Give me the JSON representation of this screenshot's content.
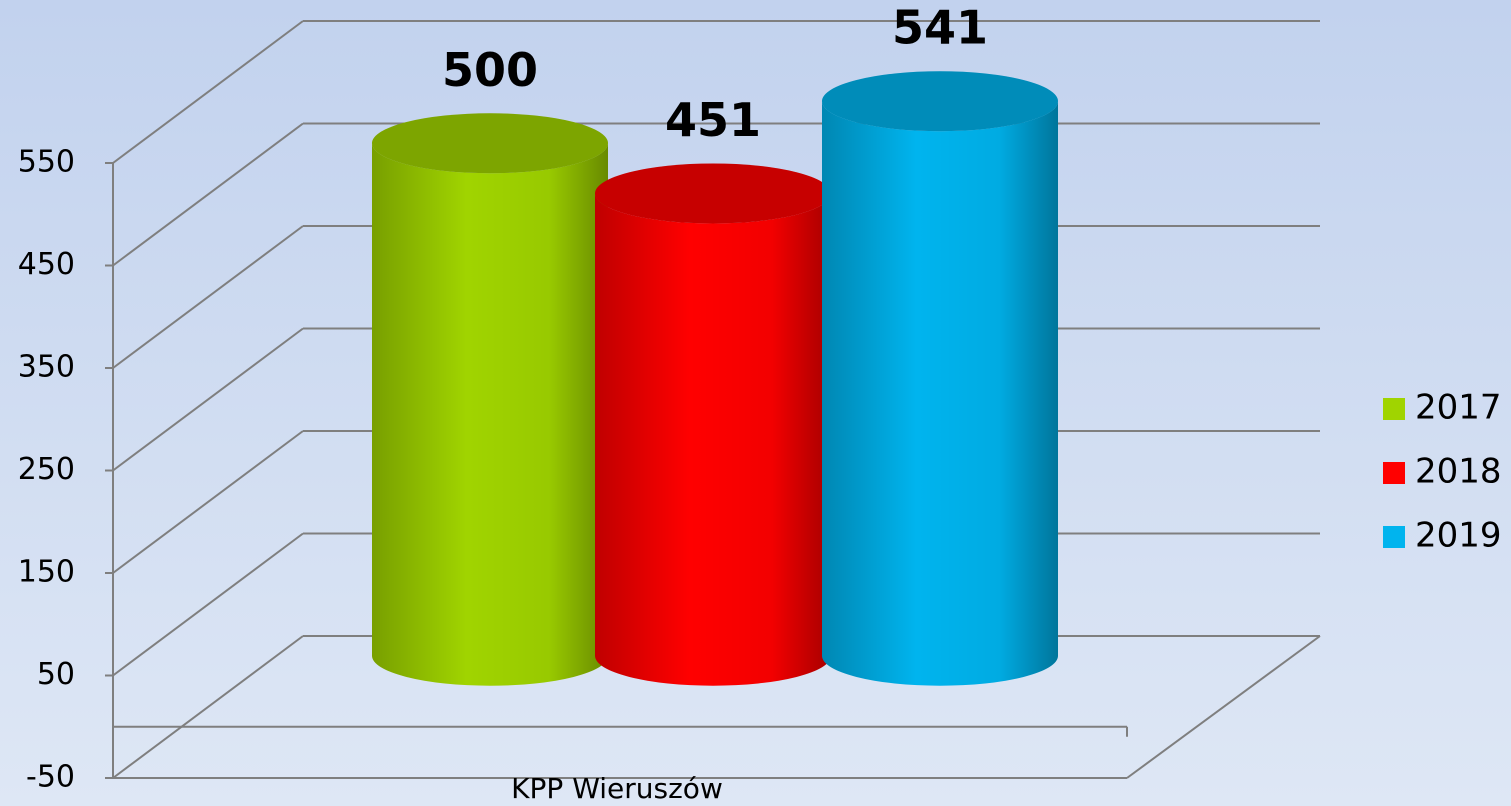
{
  "chart_data": {
    "type": "bar3d",
    "categories": [
      "KPP Wieruszów"
    ],
    "series": [
      {
        "name": "2017",
        "color": "#a0d400",
        "values": [
          500
        ]
      },
      {
        "name": "2018",
        "color": "#ff0000",
        "values": [
          451
        ]
      },
      {
        "name": "2019",
        "color": "#00b4ee",
        "values": [
          541
        ]
      }
    ],
    "ylim": [
      -50,
      550
    ],
    "yticks": [
      -50,
      50,
      150,
      250,
      350,
      450,
      550
    ],
    "grid": true,
    "legend": "right"
  }
}
